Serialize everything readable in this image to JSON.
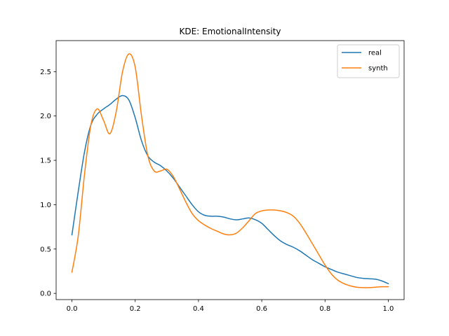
{
  "chart_data": {
    "type": "line",
    "title": "KDE: EmotionalIntensity",
    "xlabel": "",
    "ylabel": "",
    "xlim": [
      -0.05,
      1.05
    ],
    "ylim": [
      -0.07,
      2.85
    ],
    "x_ticks": [
      0.0,
      0.2,
      0.4,
      0.6,
      0.8,
      1.0
    ],
    "x_tick_labels": [
      "0.0",
      "0.2",
      "0.4",
      "0.6",
      "0.8",
      "1.0"
    ],
    "y_ticks": [
      0.0,
      0.5,
      1.0,
      1.5,
      2.0,
      2.5
    ],
    "y_tick_labels": [
      "0.0",
      "0.5",
      "1.0",
      "1.5",
      "2.0",
      "2.5"
    ],
    "grid": false,
    "legend_position": "top-right",
    "series": [
      {
        "name": "real",
        "color": "#1f77b4",
        "x": [
          0.0,
          0.02,
          0.04,
          0.06,
          0.08,
          0.1,
          0.12,
          0.14,
          0.16,
          0.18,
          0.2,
          0.22,
          0.24,
          0.26,
          0.28,
          0.3,
          0.32,
          0.34,
          0.36,
          0.38,
          0.4,
          0.42,
          0.44,
          0.46,
          0.48,
          0.5,
          0.52,
          0.54,
          0.56,
          0.58,
          0.6,
          0.62,
          0.64,
          0.66,
          0.68,
          0.7,
          0.72,
          0.74,
          0.76,
          0.78,
          0.8,
          0.82,
          0.84,
          0.86,
          0.88,
          0.9,
          0.92,
          0.94,
          0.96,
          0.98,
          1.0
        ],
        "values": [
          0.66,
          1.15,
          1.6,
          1.9,
          2.02,
          2.08,
          2.13,
          2.19,
          2.23,
          2.18,
          1.98,
          1.72,
          1.55,
          1.48,
          1.44,
          1.38,
          1.3,
          1.2,
          1.1,
          1.0,
          0.92,
          0.88,
          0.87,
          0.87,
          0.86,
          0.84,
          0.83,
          0.84,
          0.85,
          0.83,
          0.79,
          0.72,
          0.65,
          0.59,
          0.55,
          0.52,
          0.48,
          0.43,
          0.38,
          0.34,
          0.3,
          0.27,
          0.24,
          0.22,
          0.2,
          0.18,
          0.17,
          0.165,
          0.16,
          0.14,
          0.11
        ]
      },
      {
        "name": "synth",
        "color": "#ff7f0e",
        "x": [
          0.0,
          0.02,
          0.04,
          0.06,
          0.08,
          0.1,
          0.12,
          0.14,
          0.16,
          0.18,
          0.2,
          0.22,
          0.24,
          0.26,
          0.28,
          0.3,
          0.32,
          0.34,
          0.36,
          0.38,
          0.4,
          0.42,
          0.44,
          0.46,
          0.48,
          0.5,
          0.52,
          0.54,
          0.56,
          0.58,
          0.6,
          0.62,
          0.64,
          0.66,
          0.68,
          0.7,
          0.72,
          0.74,
          0.76,
          0.78,
          0.8,
          0.82,
          0.84,
          0.86,
          0.88,
          0.9,
          0.92,
          0.94,
          0.96,
          0.98,
          1.0
        ],
        "values": [
          0.24,
          0.65,
          1.35,
          1.9,
          2.08,
          1.95,
          1.8,
          2.05,
          2.5,
          2.7,
          2.55,
          2.0,
          1.55,
          1.38,
          1.38,
          1.4,
          1.32,
          1.18,
          1.03,
          0.9,
          0.82,
          0.77,
          0.73,
          0.7,
          0.67,
          0.66,
          0.68,
          0.74,
          0.82,
          0.9,
          0.93,
          0.94,
          0.94,
          0.93,
          0.91,
          0.87,
          0.79,
          0.68,
          0.56,
          0.44,
          0.32,
          0.22,
          0.15,
          0.11,
          0.085,
          0.07,
          0.065,
          0.065,
          0.07,
          0.075,
          0.075
        ]
      }
    ]
  }
}
